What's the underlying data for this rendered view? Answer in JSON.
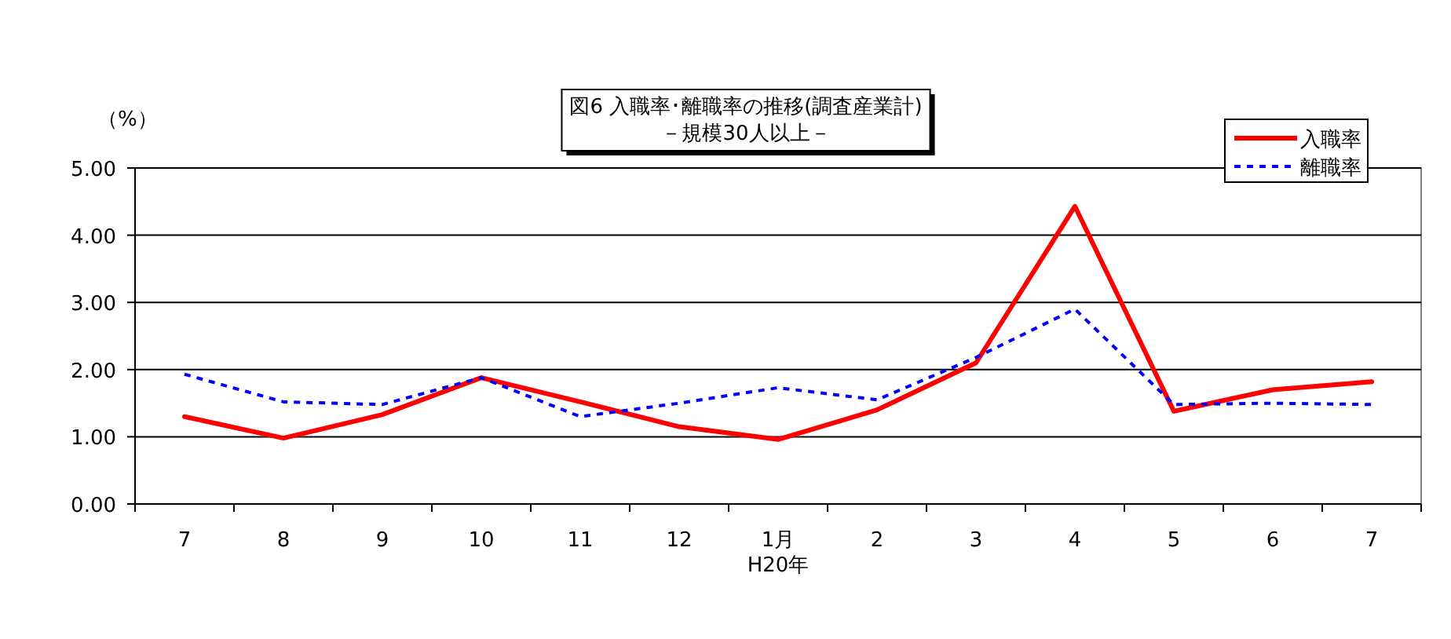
{
  "chart_data": {
    "type": "line",
    "title": "図6  入職率･離職率の推移(調査産業計)",
    "subtitle": "－規模30人以上－",
    "ylabel": "（%）",
    "categories": [
      "7",
      "8",
      "9",
      "10",
      "11",
      "12",
      "1月",
      "2",
      "3",
      "4",
      "5",
      "6",
      "7"
    ],
    "series": [
      {
        "name": "入職率",
        "color": "#ff0000",
        "line_style": "solid",
        "values": [
          1.3,
          0.98,
          1.33,
          1.88,
          1.52,
          1.15,
          0.96,
          1.4,
          2.1,
          4.43,
          1.38,
          1.7,
          1.82
        ]
      },
      {
        "name": "離職率",
        "color": "#0000ff",
        "line_style": "dotted",
        "values": [
          1.93,
          1.52,
          1.48,
          1.88,
          1.3,
          1.5,
          1.73,
          1.55,
          2.18,
          2.9,
          1.48,
          1.5,
          1.48
        ]
      }
    ],
    "ylim": [
      0,
      5
    ],
    "yticks": [
      {
        "value": 0,
        "label": "0.00"
      },
      {
        "value": 1,
        "label": "1.00"
      },
      {
        "value": 2,
        "label": "2.00"
      },
      {
        "value": 3,
        "label": "3.00"
      },
      {
        "value": 4,
        "label": "4.00"
      },
      {
        "value": 5,
        "label": "5.00"
      }
    ],
    "grid": "y",
    "legend": "top right",
    "marker": "none",
    "annotations": [
      "H20年"
    ]
  }
}
